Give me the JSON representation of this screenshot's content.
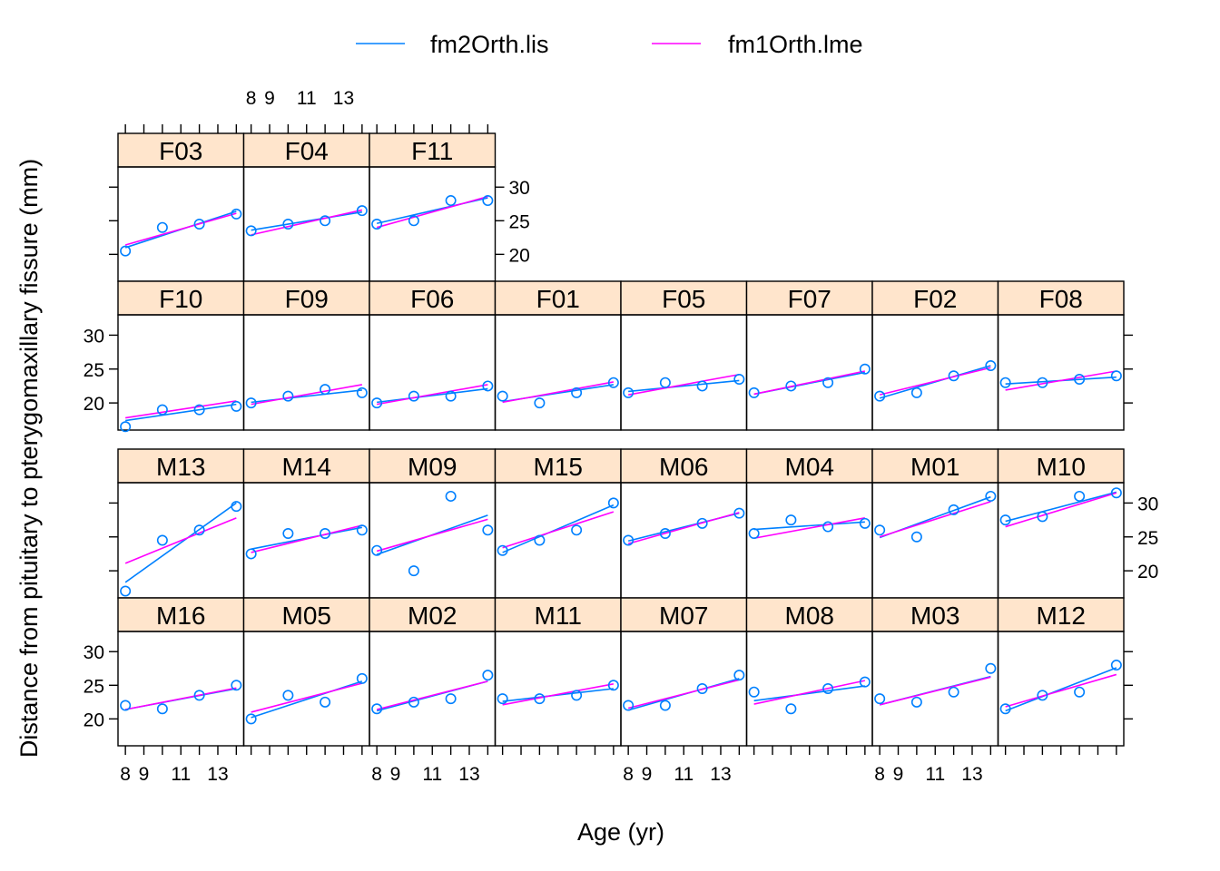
{
  "chart_data": {
    "type": "scatter",
    "xlabel": "Age (yr)",
    "ylabel": "Distance from pituitary to pterygomaxillary fissure (mm)",
    "x_ticks": [
      8,
      9,
      11,
      13
    ],
    "y_ticks": [
      20,
      25,
      30
    ],
    "xlim": [
      7.6,
      14.4
    ],
    "ylim": [
      16,
      33
    ],
    "ages": [
      8,
      10,
      12,
      14
    ],
    "legend": [
      {
        "name": "fm2Orth.lis",
        "color": "#0080ff"
      },
      {
        "name": "fm1Orth.lme",
        "color": "#ff00ff"
      }
    ],
    "colors": {
      "points": "#0080ff",
      "strip": "#ffe5cc",
      "lis": "#0080ff",
      "lme": "#ff00ff"
    },
    "panels": [
      {
        "id": "F03",
        "row": 0,
        "col": 0,
        "y": [
          20.5,
          24.0,
          24.5,
          26.0
        ],
        "lis": [
          21.0,
          26.4
        ],
        "lme": [
          21.4,
          26.1
        ]
      },
      {
        "id": "F04",
        "row": 0,
        "col": 1,
        "y": [
          23.5,
          24.5,
          25.0,
          26.5
        ],
        "lis": [
          23.6,
          26.3
        ],
        "lme": [
          22.9,
          26.6
        ]
      },
      {
        "id": "F11",
        "row": 0,
        "col": 2,
        "y": [
          24.5,
          25.0,
          28.0,
          28.0
        ],
        "lis": [
          24.6,
          28.4
        ],
        "lme": [
          24.0,
          28.6
        ]
      },
      {
        "id": "F10",
        "row": 1,
        "col": 0,
        "y": [
          16.5,
          19.0,
          19.0,
          19.5
        ],
        "lis": [
          17.4,
          19.8
        ],
        "lme": [
          17.8,
          20.3
        ]
      },
      {
        "id": "F09",
        "row": 1,
        "col": 1,
        "y": [
          20.0,
          21.0,
          22.0,
          21.5
        ],
        "lis": [
          20.1,
          21.9
        ],
        "lme": [
          19.8,
          22.7
        ]
      },
      {
        "id": "F06",
        "row": 1,
        "col": 2,
        "y": [
          20.0,
          21.0,
          21.0,
          22.5
        ],
        "lis": [
          20.1,
          22.1
        ],
        "lme": [
          19.8,
          22.7
        ]
      },
      {
        "id": "F01",
        "row": 1,
        "col": 3,
        "y": [
          21.0,
          20.0,
          21.5,
          23.0
        ],
        "lis": [
          20.2,
          22.7
        ],
        "lme": [
          20.1,
          23.1
        ]
      },
      {
        "id": "F05",
        "row": 1,
        "col": 4,
        "y": [
          21.5,
          23.0,
          22.5,
          23.5
        ],
        "lis": [
          21.7,
          23.3
        ],
        "lme": [
          21.2,
          24.2
        ]
      },
      {
        "id": "F07",
        "row": 1,
        "col": 5,
        "y": [
          21.5,
          22.5,
          23.0,
          25.0
        ],
        "lis": [
          21.3,
          24.5
        ],
        "lme": [
          21.3,
          24.7
        ]
      },
      {
        "id": "F02",
        "row": 1,
        "col": 6,
        "y": [
          21.0,
          21.5,
          24.0,
          25.5
        ],
        "lis": [
          20.7,
          25.5
        ],
        "lme": [
          21.2,
          25.2
        ]
      },
      {
        "id": "F08",
        "row": 1,
        "col": 7,
        "y": [
          23.0,
          23.0,
          23.5,
          24.0
        ],
        "lis": [
          22.8,
          23.8
        ],
        "lme": [
          21.9,
          24.7
        ]
      },
      {
        "id": "M13",
        "row": 2,
        "col": 0,
        "y": [
          17.0,
          24.5,
          26.0,
          29.5
        ],
        "lis": [
          18.3,
          30.0
        ],
        "lme": [
          21.1,
          27.8
        ]
      },
      {
        "id": "M14",
        "row": 2,
        "col": 1,
        "y": [
          22.5,
          25.5,
          25.5,
          26.0
        ],
        "lis": [
          23.2,
          26.4
        ],
        "lme": [
          22.7,
          26.7
        ]
      },
      {
        "id": "M09",
        "row": 2,
        "col": 2,
        "y": [
          23.0,
          20.0,
          31.0,
          26.0
        ],
        "lis": [
          22.4,
          28.2
        ],
        "lme": [
          22.9,
          27.6
        ]
      },
      {
        "id": "M15",
        "row": 2,
        "col": 3,
        "y": [
          23.0,
          24.5,
          26.0,
          30.0
        ],
        "lis": [
          22.7,
          29.7
        ],
        "lme": [
          23.4,
          28.7
        ]
      },
      {
        "id": "M06",
        "row": 2,
        "col": 4,
        "y": [
          24.5,
          25.5,
          27.0,
          28.5
        ],
        "lis": [
          24.4,
          28.5
        ],
        "lme": [
          24.0,
          28.6
        ]
      },
      {
        "id": "M04",
        "row": 2,
        "col": 5,
        "y": [
          25.5,
          27.5,
          26.5,
          27.0
        ],
        "lis": [
          26.1,
          27.2
        ],
        "lme": [
          24.8,
          27.8
        ]
      },
      {
        "id": "M01",
        "row": 2,
        "col": 6,
        "y": [
          26.0,
          25.0,
          29.0,
          31.0
        ],
        "lis": [
          24.9,
          30.9
        ],
        "lme": [
          25.0,
          30.2
        ]
      },
      {
        "id": "M10",
        "row": 2,
        "col": 7,
        "y": [
          27.5,
          28.0,
          31.0,
          31.5
        ],
        "lis": [
          27.3,
          31.6
        ],
        "lme": [
          26.5,
          31.5
        ]
      },
      {
        "id": "M16",
        "row": 3,
        "col": 0,
        "y": [
          22.0,
          21.5,
          23.5,
          25.0
        ],
        "lis": [
          21.4,
          24.5
        ],
        "lme": [
          21.4,
          24.6
        ]
      },
      {
        "id": "M05",
        "row": 3,
        "col": 1,
        "y": [
          20.0,
          23.5,
          22.5,
          26.0
        ],
        "lis": [
          20.2,
          25.6
        ],
        "lme": [
          21.0,
          25.3
        ]
      },
      {
        "id": "M02",
        "row": 3,
        "col": 2,
        "y": [
          21.5,
          22.5,
          23.0,
          26.5
        ],
        "lis": [
          21.2,
          25.6
        ],
        "lme": [
          21.4,
          25.6
        ]
      },
      {
        "id": "M11",
        "row": 3,
        "col": 3,
        "y": [
          23.0,
          23.0,
          23.5,
          25.0
        ],
        "lis": [
          22.6,
          24.5
        ],
        "lme": [
          22.1,
          25.2
        ]
      },
      {
        "id": "M07",
        "row": 3,
        "col": 4,
        "y": [
          22.0,
          22.0,
          24.5,
          26.5
        ],
        "lis": [
          21.3,
          26.0
        ],
        "lme": [
          21.6,
          25.8
        ]
      },
      {
        "id": "M08",
        "row": 3,
        "col": 5,
        "y": [
          24.0,
          21.5,
          24.5,
          25.5
        ],
        "lis": [
          22.7,
          24.9
        ],
        "lme": [
          22.2,
          25.7
        ]
      },
      {
        "id": "M03",
        "row": 3,
        "col": 6,
        "y": [
          23.0,
          22.5,
          24.0,
          27.5
        ],
        "lis": [
          22.1,
          26.3
        ],
        "lme": [
          22.1,
          26.2
        ]
      },
      {
        "id": "M12",
        "row": 3,
        "col": 7,
        "y": [
          21.5,
          23.5,
          24.0,
          28.0
        ],
        "lis": [
          21.2,
          27.6
        ],
        "lme": [
          21.8,
          26.6
        ]
      }
    ]
  }
}
